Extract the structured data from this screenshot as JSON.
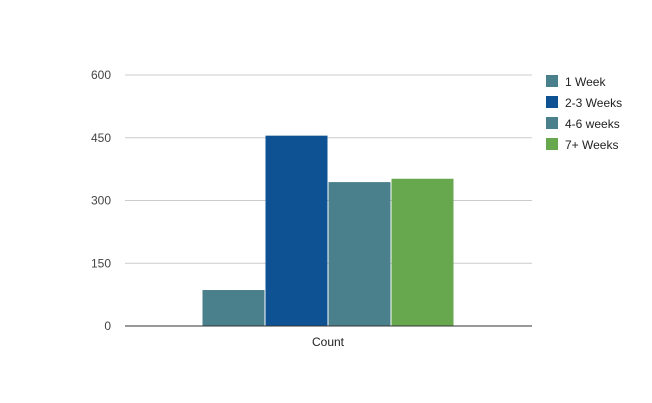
{
  "chart_data": {
    "type": "bar",
    "categories": [
      "Count"
    ],
    "series": [
      {
        "name": "1 Week",
        "values": [
          86
        ],
        "color": "#4a808c"
      },
      {
        "name": "2-3 Weeks",
        "values": [
          455
        ],
        "color": "#0e5294"
      },
      {
        "name": "4-6 weeks",
        "values": [
          344
        ],
        "color": "#4a808c"
      },
      {
        "name": "7+ Weeks",
        "values": [
          352
        ],
        "color": "#67a84e"
      }
    ],
    "yticks": [
      "0",
      "150",
      "300",
      "450",
      "600"
    ],
    "ylim": [
      0,
      600
    ],
    "grid": true,
    "legend": "right",
    "gridline_color": "#cccccc",
    "baseline_color": "#333333"
  }
}
